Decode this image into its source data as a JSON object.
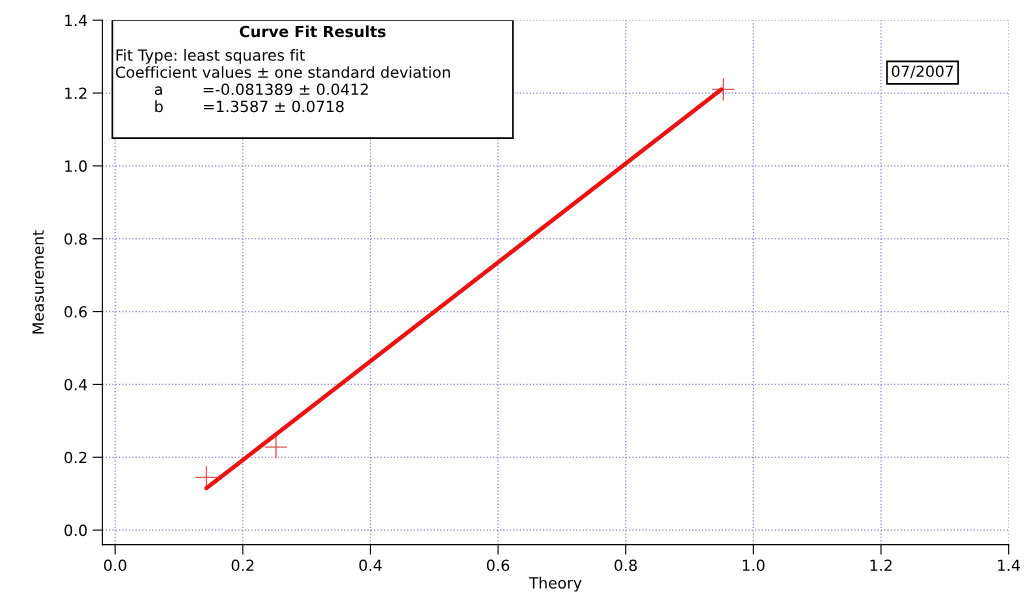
{
  "chart_data": {
    "type": "scatter",
    "xlabel": "Theory",
    "ylabel": "Measurement",
    "xlim": [
      -0.02,
      1.4
    ],
    "ylim": [
      -0.04,
      1.4
    ],
    "xticks": [
      {
        "value": 0,
        "label": "0.0"
      },
      0.2,
      0.4,
      0.6,
      0.8,
      {
        "value": 1,
        "label": "1.0"
      },
      1.2,
      1.4
    ],
    "yticks": [
      {
        "value": 0,
        "label": "0.0"
      },
      0.2,
      0.4,
      0.6,
      0.8,
      {
        "value": 1,
        "label": "1.0"
      },
      1.2,
      1.4
    ],
    "grid": true,
    "series": [
      {
        "marker": "cross",
        "color": "#e05858",
        "x": [
          0.143,
          0.252,
          0.953
        ],
        "values": [
          0.145,
          0.228,
          1.21
        ]
      },
      {
        "type": "line",
        "marker": "none",
        "line_style": "solid",
        "color": "#ee1111",
        "x": [
          0.143,
          0.95
        ],
        "values": [
          0.115,
          1.21
        ]
      }
    ],
    "annotations": [
      "Curve Fit Results",
      "Fit Type: least squares fit\nCoefficient values ± one standard deviation\n        a        =-0.081389 ± 0.0412\n        b        =1.3587 ± 0.0718",
      "07/2007"
    ]
  }
}
